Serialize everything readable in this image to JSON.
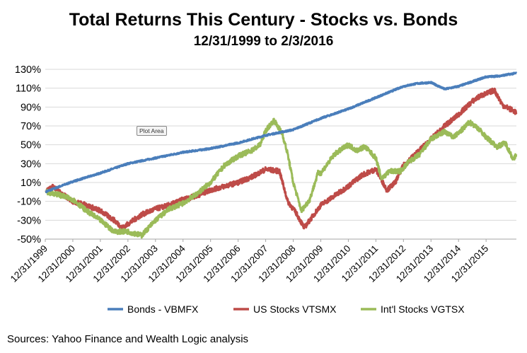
{
  "chart_data": {
    "type": "line",
    "title": "Total Returns This Century - Stocks vs. Bonds",
    "subtitle": "12/31/1999 to 2/3/2016",
    "xlabel": "",
    "ylabel": "",
    "x_ticks": [
      "12/31/1999",
      "12/31/2000",
      "12/31/2001",
      "12/31/2002",
      "12/31/2003",
      "12/31/2004",
      "12/31/2005",
      "12/31/2006",
      "12/31/2007",
      "12/31/2008",
      "12/31/2009",
      "12/31/2010",
      "12/31/2011",
      "12/31/2012",
      "12/31/2013",
      "12/31/2014",
      "12/31/2015"
    ],
    "y_ticks": [
      "130%",
      "110%",
      "90%",
      "70%",
      "50%",
      "30%",
      "10%",
      "-10%",
      "-30%",
      "-50%"
    ],
    "ylim": [
      -50,
      130
    ],
    "xlim": [
      1999.0,
      2016.1
    ],
    "grid": "horizontal",
    "legend_position": "bottom",
    "series": [
      {
        "name": "Bonds - VBMFX",
        "color": "#4a7ebb",
        "x": [
          1999.0,
          2000.0,
          2001.0,
          2002.0,
          2003.0,
          2004.0,
          2005.0,
          2006.0,
          2007.0,
          2008.0,
          2008.5,
          2009.0,
          2010.0,
          2011.0,
          2012.0,
          2012.5,
          2013.0,
          2013.5,
          2014.0,
          2015.0,
          2015.5,
          2016.1
        ],
        "y": [
          0,
          11,
          20,
          30,
          36,
          42,
          46,
          52,
          60,
          66,
          72,
          78,
          88,
          100,
          112,
          115,
          116,
          109,
          112,
          122,
          123,
          126
        ]
      },
      {
        "name": "US Stocks VTSMX",
        "color": "#be4b48",
        "x": [
          1999.0,
          1999.3,
          1999.6,
          2000.0,
          2000.5,
          2001.0,
          2001.5,
          2001.8,
          2002.0,
          2002.5,
          2003.0,
          2003.5,
          2004.0,
          2004.5,
          2005.0,
          2005.5,
          2006.0,
          2006.5,
          2007.0,
          2007.5,
          2007.8,
          2008.1,
          2008.4,
          2008.6,
          2009.0,
          2009.5,
          2010.0,
          2010.5,
          2011.0,
          2011.4,
          2011.7,
          2012.0,
          2012.5,
          2013.0,
          2013.5,
          2014.0,
          2014.5,
          2014.8,
          2015.0,
          2015.3,
          2015.6,
          2016.0,
          2016.1
        ],
        "y": [
          0,
          6,
          -2,
          -10,
          -14,
          -20,
          -30,
          -38,
          -34,
          -24,
          -18,
          -14,
          -8,
          -4,
          2,
          6,
          10,
          16,
          24,
          22,
          -10,
          -22,
          -38,
          -30,
          -14,
          -4,
          6,
          18,
          24,
          2,
          10,
          28,
          42,
          56,
          70,
          82,
          96,
          102,
          104,
          108,
          92,
          86,
          84
        ]
      },
      {
        "name": "Int'l Stocks VGTSX",
        "color": "#9bbb59",
        "x": [
          1999.0,
          1999.4,
          1999.7,
          2000.0,
          2000.5,
          2001.0,
          2001.5,
          2002.0,
          2002.5,
          2003.0,
          2003.5,
          2004.0,
          2004.5,
          2005.0,
          2005.5,
          2006.0,
          2006.5,
          2006.8,
          2007.0,
          2007.3,
          2007.6,
          2007.8,
          2008.0,
          2008.3,
          2008.6,
          2008.9,
          2009.0,
          2009.5,
          2010.0,
          2010.3,
          2010.6,
          2011.0,
          2011.2,
          2011.5,
          2011.9,
          2012.2,
          2012.6,
          2013.0,
          2013.5,
          2013.8,
          2014.0,
          2014.4,
          2014.7,
          2015.0,
          2015.4,
          2015.7,
          2016.0,
          2016.1
        ],
        "y": [
          0,
          -2,
          -5,
          -8,
          -20,
          -30,
          -42,
          -42,
          -46,
          -30,
          -18,
          -12,
          -2,
          10,
          28,
          38,
          44,
          50,
          65,
          76,
          62,
          40,
          10,
          -20,
          -8,
          20,
          20,
          40,
          50,
          44,
          48,
          36,
          14,
          22,
          22,
          32,
          40,
          56,
          64,
          58,
          62,
          74,
          68,
          58,
          48,
          52,
          34,
          40
        ]
      }
    ]
  },
  "annotations": {
    "plot_area_tip": "Plot Area"
  },
  "footer": {
    "source": "Sources:  Yahoo Finance and Wealth Logic analysis"
  }
}
